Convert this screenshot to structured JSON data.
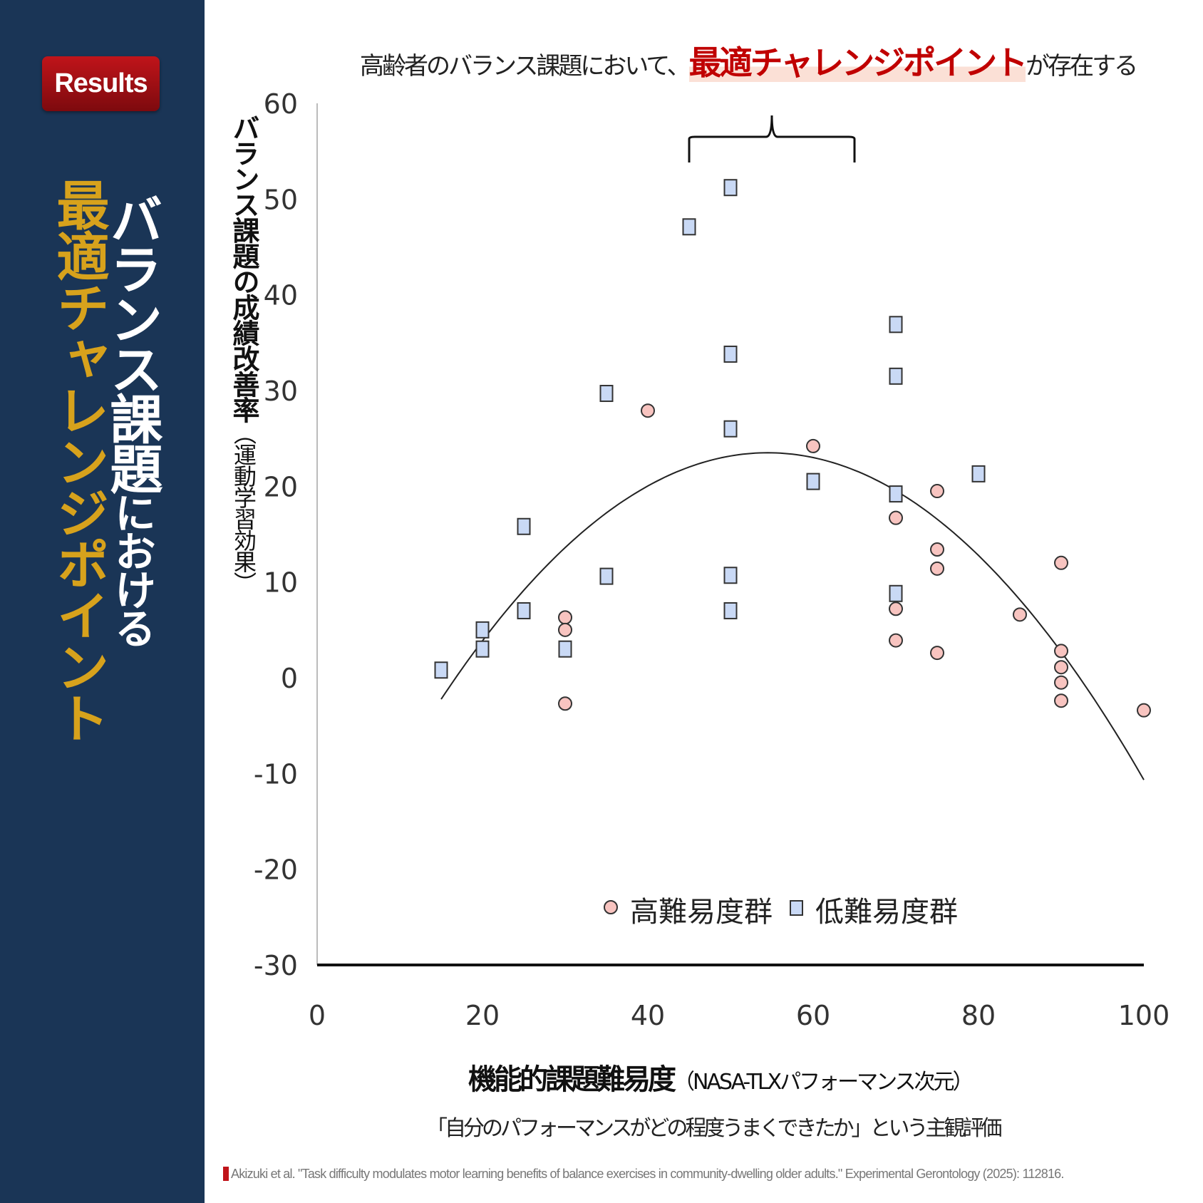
{
  "sidebar": {
    "badge": "Results",
    "title_white": "バランス課題における",
    "title_white_big": "バランス課題",
    "title_white_small": "における",
    "title_gold": "最適チャレンジポイント"
  },
  "headline": {
    "before": "高齢者のバランス課題において、",
    "highlight": "最適チャレンジポイント",
    "after": "が存在する"
  },
  "colors": {
    "sidebar": "#1a3556",
    "accent": "#c00000",
    "gold": "#d7a21c",
    "high_group": "#f8c4c0",
    "low_group": "#c9d9f5"
  },
  "chart_data": {
    "type": "scatter",
    "ylabel_main": "バランス課題の成績改善率",
    "ylabel_sub": "（運動学習効果）",
    "xlabel_main": "機能的課題難易度",
    "xlabel_paren": "（NASA-TLXパフォーマンス次元）",
    "xlabel_sub": "「自分のパフォーマンスがどの程度うまくできたか」という主観評価",
    "xlim": [
      0,
      100
    ],
    "ylim": [
      -30,
      60
    ],
    "xticks": [
      "0",
      "20",
      "40",
      "60",
      "80",
      "100"
    ],
    "yticks": [
      "60",
      "50",
      "40",
      "30",
      "20",
      "10",
      "0",
      "-10",
      "-20",
      "-30"
    ],
    "grid": false,
    "legend_placement": "bottom-center",
    "series": [
      {
        "name": "高難易度群",
        "marker": "circle",
        "color": "#f8c4c0",
        "points": [
          [
            30,
            6.3
          ],
          [
            30,
            5.0
          ],
          [
            30,
            -2.7
          ],
          [
            40,
            27.9
          ],
          [
            60,
            24.2
          ],
          [
            70,
            16.7
          ],
          [
            70,
            7.2
          ],
          [
            70,
            3.9
          ],
          [
            75,
            19.5
          ],
          [
            75,
            13.4
          ],
          [
            75,
            11.4
          ],
          [
            75,
            2.6
          ],
          [
            85,
            6.6
          ],
          [
            90,
            12.0
          ],
          [
            90,
            2.8
          ],
          [
            90,
            1.1
          ],
          [
            90,
            -0.5
          ],
          [
            90,
            -2.4
          ],
          [
            100,
            -3.4
          ]
        ]
      },
      {
        "name": "低難易度群",
        "marker": "square",
        "color": "#c9d9f5",
        "points": [
          [
            15,
            0.8
          ],
          [
            20,
            5.0
          ],
          [
            20,
            3.0
          ],
          [
            25,
            15.8
          ],
          [
            25,
            7.0
          ],
          [
            30,
            3.0
          ],
          [
            35,
            29.7
          ],
          [
            35,
            10.6
          ],
          [
            45,
            47.1
          ],
          [
            50,
            51.2
          ],
          [
            50,
            33.8
          ],
          [
            50,
            26.0
          ],
          [
            50,
            10.7
          ],
          [
            50,
            7.0
          ],
          [
            60,
            20.5
          ],
          [
            70,
            36.9
          ],
          [
            70,
            31.5
          ],
          [
            70,
            19.2
          ],
          [
            70,
            8.8
          ],
          [
            80,
            21.3
          ]
        ]
      }
    ],
    "trendline": {
      "type": "quadratic",
      "vertex_x": 54.5,
      "vertex_y": 23.5,
      "a": -0.0165,
      "x_range": [
        15,
        100
      ]
    },
    "bracket_x_range": [
      45,
      65
    ]
  },
  "citation": "Akizuki et al. \"Task difficulty modulates motor learning benefits of balance exercises in community-dwelling older adults.\" Experimental Gerontology (2025): 112816."
}
